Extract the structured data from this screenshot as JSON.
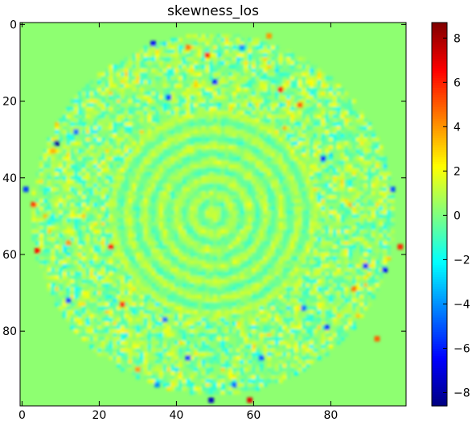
{
  "chart_data": {
    "type": "heatmap",
    "title": "skewness_los",
    "colormap": "jet",
    "background_value": 0.3,
    "grid": false,
    "x": {
      "label": "",
      "lim": [
        -0.5,
        99.5
      ],
      "ticks": [
        0,
        20,
        40,
        60,
        80
      ],
      "tick_labels": [
        "0",
        "20",
        "40",
        "60",
        "80"
      ]
    },
    "y": {
      "label": "",
      "lim": [
        -0.5,
        99.5
      ],
      "inverted": true,
      "ticks": [
        0,
        20,
        40,
        60,
        80
      ],
      "tick_labels": [
        "0",
        "20",
        "40",
        "60",
        "80"
      ]
    },
    "colorbar": {
      "vmin": -8.6,
      "vmax": 8.7,
      "ticks": [
        -8,
        -6,
        -4,
        -2,
        0,
        2,
        4,
        6,
        8
      ],
      "tick_labels": [
        "−8",
        "−6",
        "−4",
        "−2",
        "0",
        "2",
        "4",
        "6",
        "8"
      ]
    },
    "pattern": {
      "description": "annular speckle; near-zero values outside radius ~47 and in a ring-textured center",
      "center": [
        49.5,
        49.5
      ],
      "ring_inner_radius": 27,
      "ring_outer_radius": 47,
      "extreme_points": [
        {
          "x": 9,
          "y": 31,
          "value": -8.0
        },
        {
          "x": 3,
          "y": 47,
          "value": 5.5
        },
        {
          "x": 4,
          "y": 59,
          "value": 6.5
        },
        {
          "x": 12,
          "y": 72,
          "value": -5.5
        },
        {
          "x": 26,
          "y": 73,
          "value": 6.0
        },
        {
          "x": 34,
          "y": 5,
          "value": -6.5
        },
        {
          "x": 48,
          "y": 8,
          "value": 6.5
        },
        {
          "x": 50,
          "y": 15,
          "value": -6.0
        },
        {
          "x": 38,
          "y": 19,
          "value": -5.5
        },
        {
          "x": 23,
          "y": 58,
          "value": 6.5
        },
        {
          "x": 43,
          "y": 87,
          "value": -5.5
        },
        {
          "x": 37,
          "y": 77,
          "value": -4.5
        },
        {
          "x": 49,
          "y": 98,
          "value": -7.5
        },
        {
          "x": 59,
          "y": 98,
          "value": 7.0
        },
        {
          "x": 55,
          "y": 94,
          "value": -4.5
        },
        {
          "x": 62,
          "y": 87,
          "value": -5.0
        },
        {
          "x": 78,
          "y": 35,
          "value": -6.5
        },
        {
          "x": 79,
          "y": 79,
          "value": -5.5
        },
        {
          "x": 89,
          "y": 63,
          "value": -6.0
        },
        {
          "x": 94,
          "y": 64,
          "value": -6.5
        },
        {
          "x": 96,
          "y": 43,
          "value": -5.0
        },
        {
          "x": 98,
          "y": 58,
          "value": 6.0
        },
        {
          "x": 92,
          "y": 82,
          "value": 5.0
        },
        {
          "x": 67,
          "y": 17,
          "value": 6.0
        },
        {
          "x": 72,
          "y": 21,
          "value": 5.0
        },
        {
          "x": 43,
          "y": 6,
          "value": 4.5
        },
        {
          "x": 12,
          "y": 57,
          "value": 4.0
        },
        {
          "x": 8,
          "y": 33,
          "value": 3.5
        },
        {
          "x": 1,
          "y": 43,
          "value": -5.5
        },
        {
          "x": 14,
          "y": 28,
          "value": -4.5
        },
        {
          "x": 73,
          "y": 74,
          "value": -4.5
        },
        {
          "x": 86,
          "y": 69,
          "value": 4.5
        },
        {
          "x": 30,
          "y": 90,
          "value": 4.0
        },
        {
          "x": 35,
          "y": 94,
          "value": -4.0
        },
        {
          "x": 64,
          "y": 3,
          "value": 4.0
        },
        {
          "x": 57,
          "y": 6,
          "value": -4.0
        }
      ]
    }
  }
}
